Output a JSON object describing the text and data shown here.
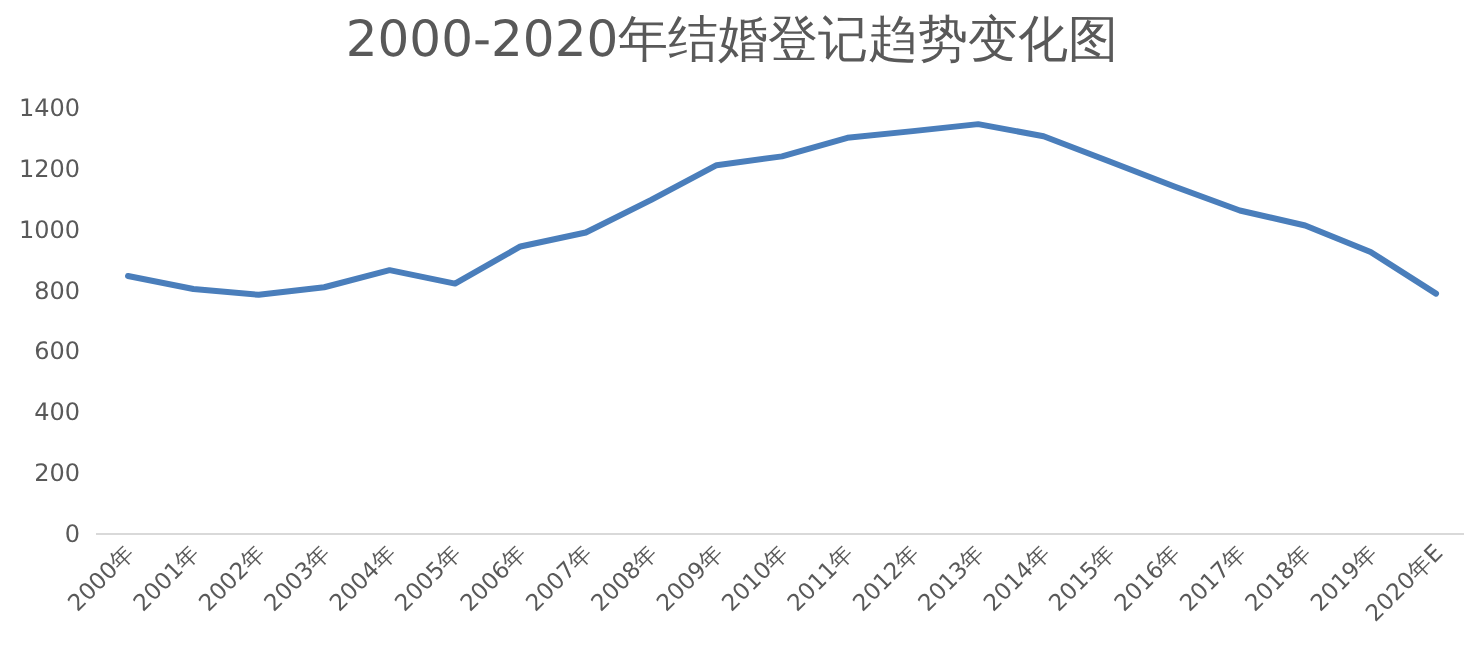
{
  "chart_data": {
    "type": "line",
    "title": "2000-2020年结婚登记趋势变化图",
    "categories": [
      "2000年",
      "2001年",
      "2002年",
      "2003年",
      "2004年",
      "2005年",
      "2006年",
      "2007年",
      "2008年",
      "2009年",
      "2010年",
      "2011年",
      "2012年",
      "2013年",
      "2014年",
      "2015年",
      "2016年",
      "2017年",
      "2018年",
      "2019年",
      "2020年E"
    ],
    "values": [
      848,
      805,
      786,
      811,
      867,
      823,
      945,
      991,
      1098,
      1212,
      1241,
      1302,
      1324,
      1347,
      1307,
      1225,
      1142,
      1063,
      1014,
      927,
      790
    ],
    "color": "#4a7ebb",
    "ylim": [
      0,
      1400
    ],
    "yticks": [
      0,
      200,
      400,
      600,
      800,
      1000,
      1200,
      1400
    ]
  }
}
